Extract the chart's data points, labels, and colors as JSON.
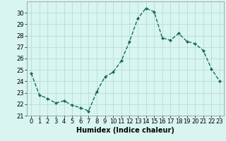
{
  "x": [
    0,
    1,
    2,
    3,
    4,
    5,
    6,
    7,
    8,
    9,
    10,
    11,
    12,
    13,
    14,
    15,
    16,
    17,
    18,
    19,
    20,
    21,
    22,
    23
  ],
  "y": [
    24.7,
    22.8,
    22.5,
    22.1,
    22.3,
    21.9,
    21.7,
    21.4,
    23.1,
    24.4,
    24.8,
    25.8,
    27.5,
    29.5,
    30.4,
    30.1,
    27.8,
    27.6,
    28.2,
    27.5,
    27.3,
    26.7,
    25.1,
    24.0
  ],
  "line_color": "#1a6b5a",
  "marker": "D",
  "marker_size": 2,
  "linewidth": 1.0,
  "linestyle": "--",
  "bg_color": "#d8f5f0",
  "grid_color": "#b0d8d4",
  "xlabel": "Humidex (Indice chaleur)",
  "xlabel_fontsize": 7,
  "tick_fontsize": 6,
  "ylim": [
    21,
    31
  ],
  "yticks": [
    21,
    22,
    23,
    24,
    25,
    26,
    27,
    28,
    29,
    30
  ],
  "xticks": [
    0,
    1,
    2,
    3,
    4,
    5,
    6,
    7,
    8,
    9,
    10,
    11,
    12,
    13,
    14,
    15,
    16,
    17,
    18,
    19,
    20,
    21,
    22,
    23
  ],
  "xlim": [
    -0.5,
    23.5
  ]
}
